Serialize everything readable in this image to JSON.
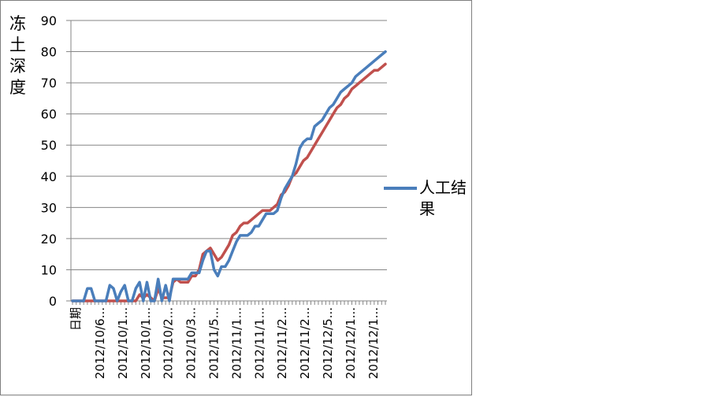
{
  "chart_data": {
    "type": "line",
    "ylabel": "冻土深度",
    "ylim": [
      0,
      90
    ],
    "yticks": [
      "0",
      "10",
      "20",
      "30",
      "40",
      "50",
      "60",
      "70",
      "80",
      "90"
    ],
    "xtick_labels": [
      "日期",
      "2012/10/6...",
      "2012/10/1...",
      "2012/10/1...",
      "2012/10/2...",
      "2012/10/3...",
      "2012/11/5...",
      "2012/11/1...",
      "2012/11/1...",
      "2012/11/2...",
      "2012/11/2...",
      "2012/12/5...",
      "2012/12/1...",
      "2012/12/1..."
    ],
    "grid": true,
    "legend_position": "right",
    "series": [
      {
        "name": "人工结果",
        "color": "#4a7ebb",
        "values": [
          0,
          0,
          0,
          0,
          4,
          4,
          0,
          0,
          0,
          0,
          5,
          4,
          0,
          3,
          5,
          0,
          0,
          4,
          6,
          0,
          6,
          0,
          0,
          7,
          0,
          5,
          0,
          7,
          7,
          7,
          7,
          7,
          9,
          9,
          9,
          13,
          16,
          16,
          10,
          8,
          11,
          11,
          13,
          16,
          19,
          21,
          21,
          21,
          22,
          24,
          24,
          26,
          28,
          28,
          28,
          29,
          33,
          36,
          38,
          40,
          44,
          49,
          51,
          52,
          52,
          56,
          57,
          58,
          60,
          62,
          63,
          65,
          67,
          68,
          69,
          70,
          72,
          73,
          74,
          75,
          76,
          77,
          78,
          79,
          80
        ]
      },
      {
        "color": "#c0504d",
        "values": [
          0,
          0,
          0,
          0,
          0,
          0,
          0,
          0,
          0,
          0,
          0,
          0,
          0,
          0,
          0,
          0,
          0,
          0,
          2,
          1,
          2,
          1,
          0,
          4,
          1,
          1,
          1,
          6,
          7,
          6,
          6,
          6,
          8,
          8,
          10,
          15,
          16,
          17,
          15,
          13,
          14,
          16,
          18,
          21,
          22,
          24,
          25,
          25,
          26,
          27,
          28,
          29,
          29,
          29,
          30,
          31,
          34,
          35,
          37,
          40,
          41,
          43,
          45,
          46,
          48,
          50,
          52,
          54,
          56,
          58,
          60,
          62,
          63,
          65,
          66,
          68,
          69,
          70,
          71,
          72,
          73,
          74,
          74,
          75,
          76
        ]
      }
    ]
  }
}
